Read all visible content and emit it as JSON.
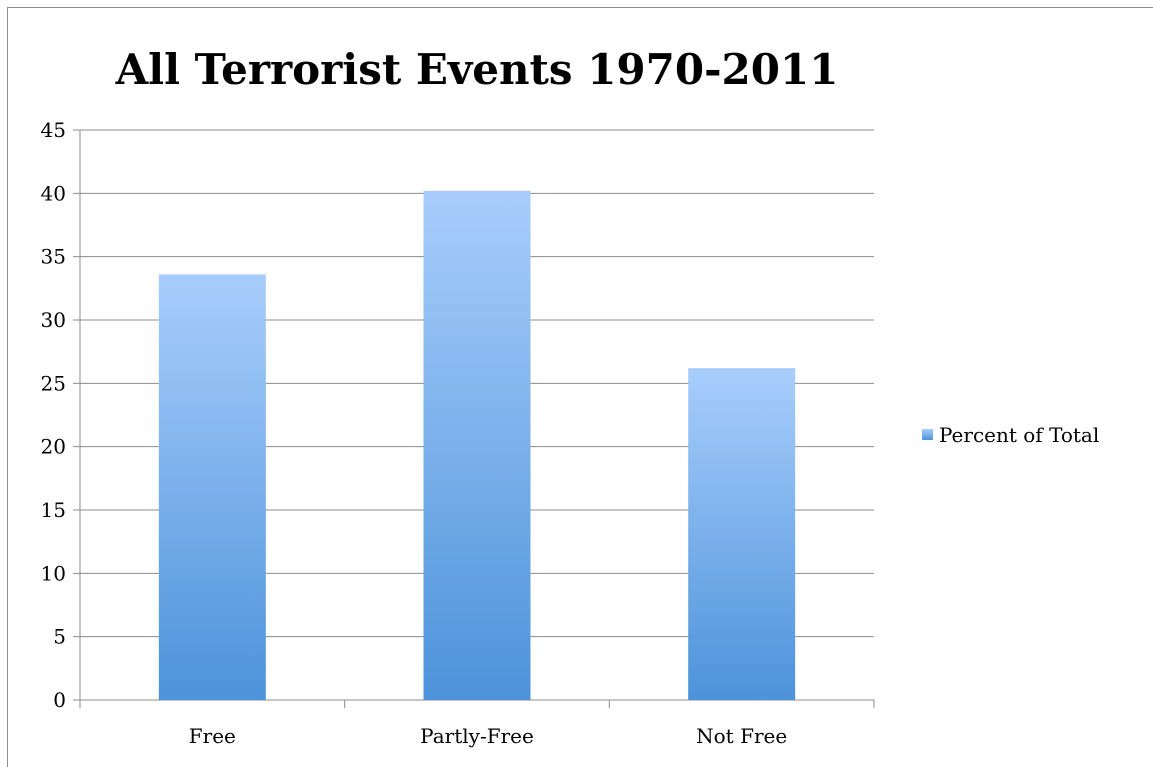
{
  "chart_data": {
    "type": "bar",
    "title": "All Terrorist Events 1970-2011",
    "xlabel": "",
    "ylabel": "",
    "categories": [
      "Free",
      "Partly-Free",
      "Not Free"
    ],
    "series": [
      {
        "name": "Percent of Total",
        "values": [
          33.6,
          40.2,
          26.2
        ]
      }
    ],
    "ylim": [
      0,
      45
    ],
    "yticks": [
      0,
      5,
      10,
      15,
      20,
      25,
      30,
      35,
      40,
      45
    ],
    "grid": true,
    "legend": "right",
    "colors": {
      "bar_top": "#a8cdfc",
      "bar_bottom": "#4d93da",
      "grid": "#8c8c8c"
    }
  }
}
